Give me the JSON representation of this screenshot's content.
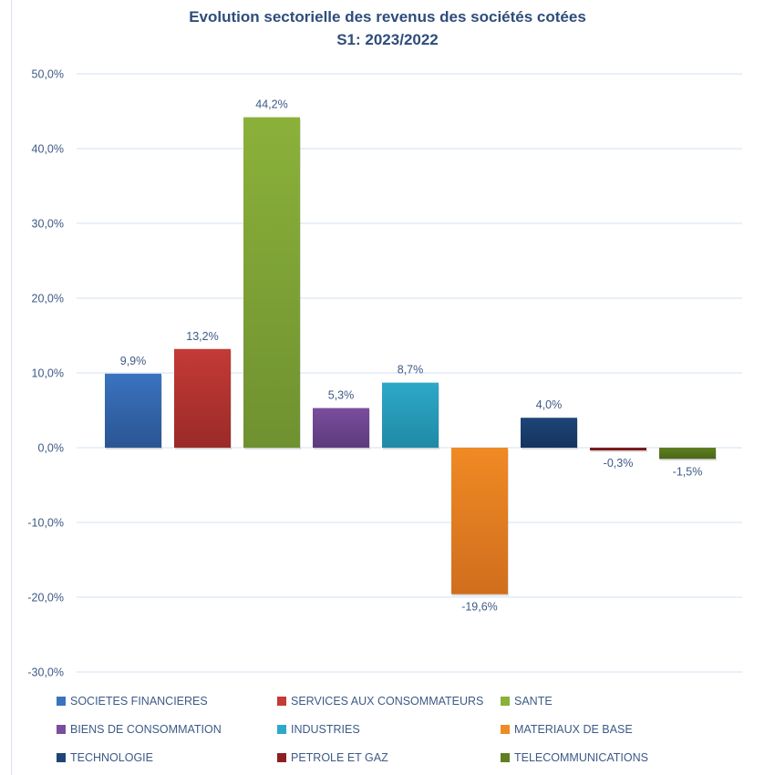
{
  "chart_data": {
    "type": "bar",
    "title": "Evolution sectorielle des revenus des sociétés cotées",
    "subtitle": "S1: 2023/2022",
    "xlabel": "",
    "ylabel": "",
    "ylim": [
      -30,
      50
    ],
    "yticks": [
      50,
      40,
      30,
      20,
      10,
      0,
      -10,
      -20,
      -30
    ],
    "ytick_labels": [
      "50,0%",
      "40,0%",
      "30,0%",
      "20,0%",
      "10,0%",
      "0,0%",
      "-10,0%",
      "-20,0%",
      "-30,0%"
    ],
    "grid": true,
    "legend_position": "bottom",
    "categories": [
      "SOCIETES FINANCIERES",
      "SERVICES AUX CONSOMMATEURS",
      "SANTE",
      "BIENS DE CONSOMMATION",
      "INDUSTRIES",
      "MATERIAUX DE BASE",
      "TECHNOLOGIE",
      "PETROLE ET GAZ",
      "TELECOMMUNICATIONS"
    ],
    "values": [
      9.9,
      13.2,
      44.2,
      5.3,
      8.7,
      -19.6,
      4.0,
      -0.3,
      -1.5
    ],
    "data_labels": [
      "9,9%",
      "13,2%",
      "44,2%",
      "5,3%",
      "8,7%",
      "-19,6%",
      "4,0%",
      "-0,3%",
      "-1,5%"
    ],
    "colors": [
      "#3a73c0",
      "#c43a36",
      "#8bb13a",
      "#7a4e9e",
      "#2ea8c8",
      "#f08a24",
      "#1e4577",
      "#8c1f22",
      "#5f7f22"
    ],
    "colors_dark": [
      "#2a5592",
      "#9a2a28",
      "#6f9130",
      "#5c3a7c",
      "#1f8aa6",
      "#d06e1e",
      "#14345f",
      "#6e1518",
      "#4a6619"
    ]
  }
}
